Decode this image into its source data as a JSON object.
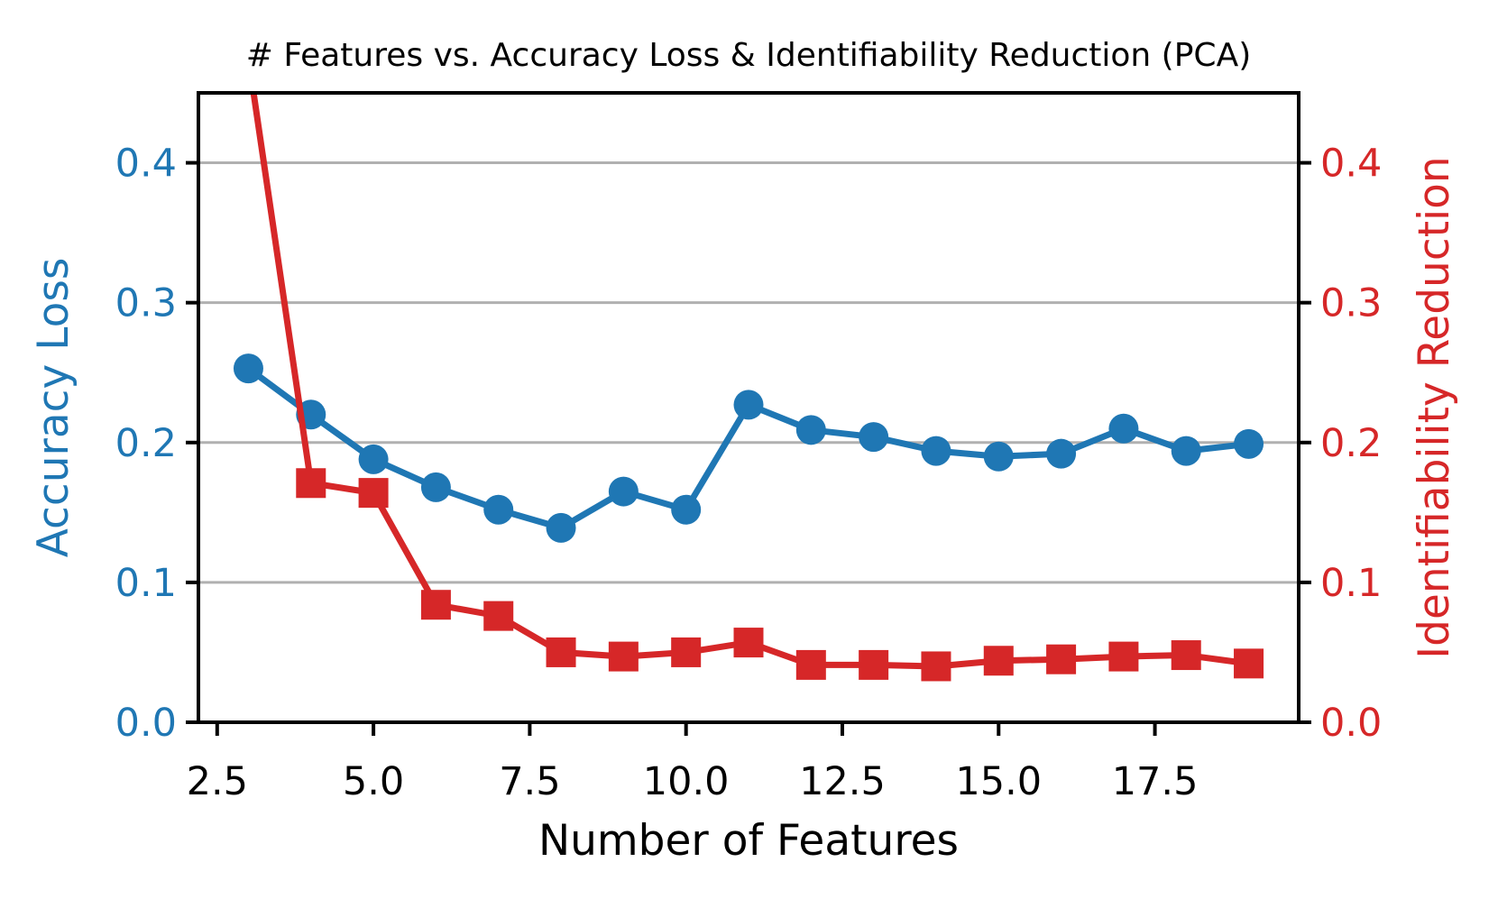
{
  "chart_data": {
    "type": "line",
    "title": "# Features vs. Accuracy Loss & Identifiability Reduction (PCA)",
    "xlabel": "Number of Features",
    "ylabel_left": "Accuracy Loss",
    "ylabel_right": "Identifiability Reduction",
    "x": [
      3,
      4,
      5,
      6,
      7,
      8,
      9,
      10,
      11,
      12,
      13,
      14,
      15,
      16,
      17,
      18,
      19
    ],
    "series": [
      {
        "name": "Accuracy Loss",
        "axis": "left",
        "marker": "circle",
        "color": "#1f77b4",
        "values": [
          0.253,
          0.22,
          0.188,
          0.168,
          0.152,
          0.139,
          0.165,
          0.152,
          0.227,
          0.209,
          0.204,
          0.194,
          0.19,
          0.192,
          0.21,
          0.194,
          0.199
        ]
      },
      {
        "name": "Identifiability Reduction",
        "axis": "right",
        "marker": "square",
        "color": "#d62728",
        "values": [
          0.475,
          0.171,
          0.164,
          0.084,
          0.076,
          0.05,
          0.047,
          0.05,
          0.057,
          0.041,
          0.041,
          0.04,
          0.044,
          0.045,
          0.047,
          0.048,
          0.042
        ]
      }
    ],
    "xlim": [
      2.2,
      19.8
    ],
    "ylim": [
      0,
      0.45
    ],
    "x_ticks": [
      2.5,
      5.0,
      7.5,
      10.0,
      12.5,
      15.0,
      17.5
    ],
    "x_tick_labels": [
      "2.5",
      "5.0",
      "7.5",
      "10.0",
      "12.5",
      "15.0",
      "17.5"
    ],
    "y_ticks": [
      0.0,
      0.1,
      0.2,
      0.3,
      0.4
    ],
    "y_tick_labels": [
      "0.0",
      "0.1",
      "0.2",
      "0.3",
      "0.4"
    ],
    "grid": true,
    "legend_position": "none",
    "colors": {
      "left_axis": "#1f77b4",
      "right_axis": "#d62728",
      "gridline": "#b0b0b0",
      "spine": "#000000",
      "background": "#ffffff"
    }
  }
}
